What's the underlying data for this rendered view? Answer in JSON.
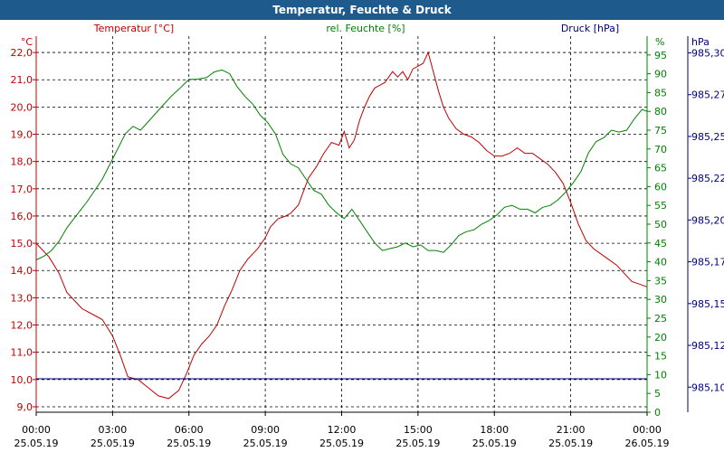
{
  "title": "Temperatur, Feuchte & Druck",
  "colors": {
    "temperature": "#c00000",
    "humidity": "#008000",
    "pressure": "#000080",
    "titlebar": "#1f5a8c"
  },
  "chart_data": {
    "type": "line",
    "title": "Temperatur, Feuchte & Druck",
    "x_ticks": [
      {
        "time": "00:00",
        "date": "25.05.19"
      },
      {
        "time": "03:00",
        "date": "25.05.19"
      },
      {
        "time": "06:00",
        "date": "25.05.19"
      },
      {
        "time": "09:00",
        "date": "25.05.19"
      },
      {
        "time": "12:00",
        "date": "25.05.19"
      },
      {
        "time": "15:00",
        "date": "25.05.19"
      },
      {
        "time": "18:00",
        "date": "25.05.19"
      },
      {
        "time": "21:00",
        "date": "25.05.19"
      },
      {
        "time": "00:00",
        "date": "26.05.19"
      }
    ],
    "xlim_hours": [
      0,
      24
    ],
    "grid": true,
    "axes": {
      "temperature": {
        "label": "Temperatur [°C]",
        "unit": "°C",
        "ylim": [
          8.8,
          22.6
        ],
        "ticks": [
          "9,0",
          "10,0",
          "11,0",
          "12,0",
          "13,0",
          "14,0",
          "15,0",
          "16,0",
          "17,0",
          "18,0",
          "19,0",
          "20,0",
          "21,0",
          "22,0"
        ],
        "tick_values": [
          9,
          10,
          11,
          12,
          13,
          14,
          15,
          16,
          17,
          18,
          19,
          20,
          21,
          22
        ]
      },
      "humidity": {
        "label": "rel. Feuchte [%]",
        "unit": "%",
        "ylim": [
          0,
          100
        ],
        "ticks": [
          "0",
          "5",
          "10",
          "15",
          "20",
          "25",
          "30",
          "35",
          "40",
          "45",
          "50",
          "55",
          "60",
          "65",
          "70",
          "75",
          "80",
          "85",
          "90",
          "95"
        ],
        "tick_values": [
          0,
          5,
          10,
          15,
          20,
          25,
          30,
          35,
          40,
          45,
          50,
          55,
          60,
          65,
          70,
          75,
          80,
          85,
          90,
          95
        ]
      },
      "pressure": {
        "label": "Druck [hPa]",
        "unit": "hPa",
        "ylim": [
          985.085,
          985.31
        ],
        "ticks": [
          "985,10",
          "985,12",
          "985,15",
          "985,17",
          "985,20",
          "985,22",
          "985,25",
          "985,27",
          "985,30"
        ],
        "tick_values": [
          985.1,
          985.125,
          985.15,
          985.175,
          985.2,
          985.225,
          985.25,
          985.275,
          985.3
        ]
      }
    },
    "series": [
      {
        "name": "Temperatur [°C]",
        "axis": "temperature",
        "x": [
          0,
          0.5,
          0.9,
          1.2,
          1.5,
          1.8,
          2.2,
          2.6,
          3.0,
          3.3,
          3.6,
          4.0,
          4.4,
          4.8,
          5.2,
          5.6,
          5.9,
          6.2,
          6.5,
          6.8,
          7.1,
          7.4,
          7.7,
          8.0,
          8.3,
          8.7,
          9.0,
          9.2,
          9.5,
          9.8,
          10.0,
          10.3,
          10.5,
          10.7,
          11.0,
          11.3,
          11.6,
          11.9,
          12.1,
          12.3,
          12.5,
          12.7,
          12.9,
          13.1,
          13.3,
          13.5,
          13.7,
          14.0,
          14.2,
          14.4,
          14.6,
          14.8,
          15.0,
          15.2,
          15.4,
          15.6,
          15.8,
          16.0,
          16.2,
          16.5,
          16.8,
          17.1,
          17.4,
          17.7,
          18.0,
          18.3,
          18.6,
          18.9,
          19.2,
          19.5,
          19.8,
          20.1,
          20.4,
          20.7,
          21.0,
          21.3,
          21.6,
          21.9,
          22.2,
          22.5,
          22.8,
          23.1,
          23.4,
          23.7,
          24.0
        ],
        "values": [
          15.0,
          14.5,
          13.9,
          13.2,
          12.9,
          12.6,
          12.4,
          12.2,
          11.6,
          10.9,
          10.1,
          10.0,
          9.7,
          9.4,
          9.3,
          9.6,
          10.2,
          10.9,
          11.3,
          11.6,
          12.0,
          12.7,
          13.3,
          14.0,
          14.4,
          14.8,
          15.2,
          15.6,
          15.9,
          16.0,
          16.1,
          16.4,
          16.9,
          17.4,
          17.8,
          18.3,
          18.7,
          18.6,
          19.1,
          18.5,
          18.8,
          19.5,
          20.0,
          20.4,
          20.7,
          20.8,
          20.9,
          21.3,
          21.1,
          21.3,
          21.0,
          21.4,
          21.5,
          21.6,
          22.0,
          21.3,
          20.6,
          20.0,
          19.6,
          19.2,
          19.0,
          18.9,
          18.7,
          18.4,
          18.2,
          18.2,
          18.3,
          18.5,
          18.3,
          18.3,
          18.1,
          17.9,
          17.6,
          17.2,
          16.5,
          15.7,
          15.1,
          14.8,
          14.6,
          14.4,
          14.2,
          13.9,
          13.6,
          13.5,
          13.4
        ]
      },
      {
        "name": "rel. Feuchte [%]",
        "axis": "humidity",
        "x": [
          0,
          0.3,
          0.6,
          0.9,
          1.2,
          1.6,
          2.0,
          2.3,
          2.6,
          2.9,
          3.2,
          3.5,
          3.8,
          4.1,
          4.5,
          4.9,
          5.3,
          5.7,
          6.0,
          6.3,
          6.7,
          7.0,
          7.3,
          7.6,
          7.9,
          8.2,
          8.5,
          8.8,
          9.1,
          9.4,
          9.7,
          10.0,
          10.3,
          10.6,
          10.9,
          11.2,
          11.5,
          11.8,
          12.1,
          12.4,
          12.7,
          13.0,
          13.3,
          13.6,
          13.9,
          14.2,
          14.5,
          14.8,
          15.1,
          15.4,
          15.7,
          16.0,
          16.3,
          16.6,
          16.9,
          17.2,
          17.5,
          17.8,
          18.1,
          18.4,
          18.7,
          19.0,
          19.3,
          19.6,
          19.9,
          20.2,
          20.5,
          20.8,
          21.1,
          21.4,
          21.7,
          22.0,
          22.3,
          22.6,
          22.9,
          23.2,
          23.5,
          23.8,
          24.0
        ],
        "values": [
          40.5,
          41.5,
          43,
          45.5,
          49,
          52.5,
          56,
          59,
          62,
          66,
          70,
          74,
          76,
          75,
          78,
          81,
          84,
          86.5,
          88.5,
          88.5,
          89,
          90.5,
          91,
          90,
          86.5,
          84,
          82,
          79,
          77,
          74,
          68.5,
          66,
          65,
          62,
          59,
          58,
          55,
          53,
          51.5,
          54,
          51,
          48,
          45,
          43,
          43.5,
          44,
          45,
          44,
          44.5,
          43,
          43,
          42.5,
          44.5,
          47,
          48,
          48.5,
          50,
          51,
          52.5,
          54.5,
          55,
          54,
          54,
          53,
          54.5,
          55,
          56.5,
          58.5,
          61,
          64,
          69,
          72,
          73,
          75,
          74.5,
          75,
          78,
          80.5,
          80
        ]
      },
      {
        "name": "Druck [hPa]",
        "axis": "pressure",
        "x": [
          0,
          24
        ],
        "values": [
          985.105,
          985.105
        ]
      }
    ]
  }
}
